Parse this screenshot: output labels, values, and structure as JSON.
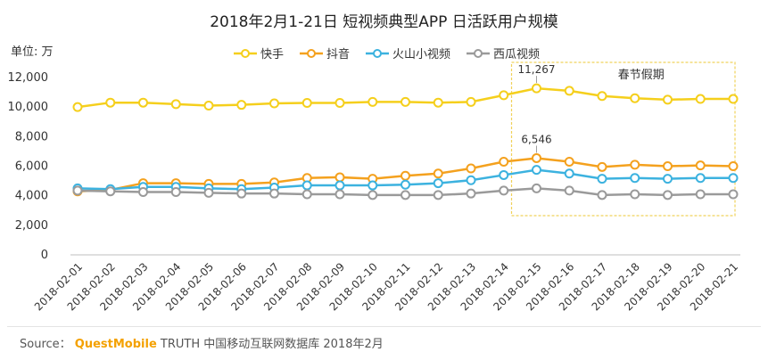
{
  "chart_data": {
    "type": "line",
    "title": "2018年2月1-21日 短视频典型APP 日活跃用户规模",
    "unit_label": "单位: 万",
    "ylim": [
      0,
      12000
    ],
    "yticks": [
      0,
      2000,
      4000,
      6000,
      8000,
      10000,
      12000
    ],
    "ytick_labels": [
      "0",
      "2,000",
      "4,000",
      "6,000",
      "8,000",
      "10,000",
      "12,000"
    ],
    "legend_position": "top-center",
    "grid": false,
    "categories": [
      "2018-02-01",
      "2018-02-02",
      "2018-02-03",
      "2018-02-04",
      "2018-02-05",
      "2018-02-06",
      "2018-02-07",
      "2018-02-08",
      "2018-02-09",
      "2018-02-10",
      "2018-02-11",
      "2018-02-12",
      "2018-02-13",
      "2018-02-14",
      "2018-02-15",
      "2018-02-16",
      "2018-02-17",
      "2018-02-18",
      "2018-02-19",
      "2018-02-20",
      "2018-02-21"
    ],
    "series": [
      {
        "name": "快手",
        "color": "#f5cf1c",
        "values": [
          10000,
          10300,
          10300,
          10200,
          10100,
          10150,
          10250,
          10280,
          10280,
          10350,
          10350,
          10300,
          10350,
          10800,
          11267,
          11100,
          10750,
          10600,
          10500,
          10550,
          10550
        ]
      },
      {
        "name": "抖音",
        "color": "#f4a11e",
        "values": [
          4300,
          4400,
          4850,
          4850,
          4800,
          4800,
          4900,
          5200,
          5250,
          5150,
          5350,
          5500,
          5850,
          6300,
          6546,
          6300,
          5950,
          6100,
          6000,
          6050,
          6000
        ]
      },
      {
        "name": "火山小视频",
        "color": "#3cb2df",
        "values": [
          4500,
          4450,
          4600,
          4600,
          4500,
          4450,
          4550,
          4700,
          4700,
          4700,
          4750,
          4850,
          5050,
          5400,
          5750,
          5500,
          5150,
          5200,
          5150,
          5200,
          5200
        ]
      },
      {
        "name": "西瓜视频",
        "color": "#9a9a9a",
        "values": [
          4350,
          4300,
          4250,
          4250,
          4200,
          4150,
          4150,
          4100,
          4100,
          4050,
          4050,
          4050,
          4150,
          4350,
          4500,
          4350,
          4050,
          4100,
          4050,
          4100,
          4100
        ]
      }
    ],
    "annotations": [
      {
        "text": "11,267",
        "series": "快手",
        "category": "2018-02-15"
      },
      {
        "text": "6,546",
        "series": "抖音",
        "category": "2018-02-15"
      }
    ],
    "highlight": {
      "label": "春节假期",
      "from": "2018-02-15",
      "to": "2018-02-21"
    }
  },
  "source": {
    "prefix": "Source：",
    "brand": "QuestMobile",
    "rest": "TRUTH 中国移动互联网数据库 2018年2月"
  }
}
